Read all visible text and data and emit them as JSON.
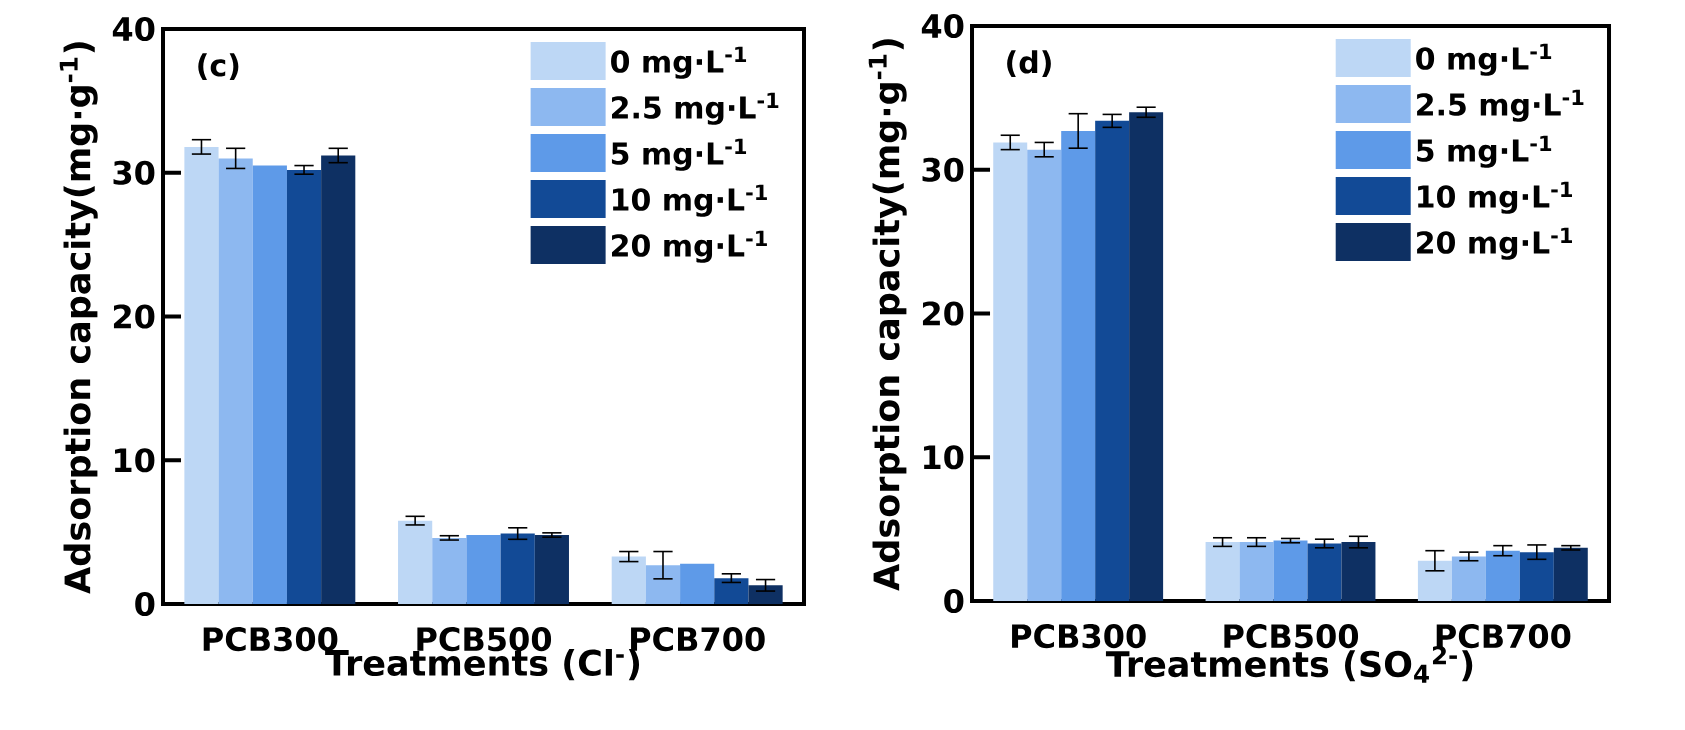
{
  "chart_data": [
    {
      "type": "bar",
      "categories": [
        "PCB300",
        "PCB500",
        "PCB700"
      ],
      "xlabel": "Treatments (Cl$^{-}$)",
      "ylabel": "Adsorption capacity(mg·g$^{-1}$)",
      "ylim": [
        0,
        40
      ],
      "yticks": [
        0,
        10,
        20,
        30,
        40
      ],
      "legend": "top right",
      "annotations": [
        "(c)"
      ],
      "series": [
        {
          "name": "0 mg·L$^{-1}$",
          "color": "#bdd7f5",
          "values": [
            31.8,
            5.8,
            3.3
          ],
          "errors": [
            0.5,
            0.3,
            0.35
          ]
        },
        {
          "name": "2.5 mg·L$^{-1}$",
          "color": "#8db8f0",
          "values": [
            31.0,
            4.6,
            2.7
          ],
          "errors": [
            0.7,
            0.15,
            0.95
          ]
        },
        {
          "name": "5 mg·L$^{-1}$",
          "color": "#5e9ae8",
          "values": [
            30.5,
            4.8,
            2.8
          ],
          "errors": [
            null,
            null,
            null
          ]
        },
        {
          "name": "10 mg·L$^{-1}$",
          "color": "#124a96",
          "values": [
            30.2,
            4.9,
            1.8
          ],
          "errors": [
            0.3,
            0.4,
            0.3
          ]
        },
        {
          "name": "20 mg·L$^{-1}$",
          "color": "#0e3063",
          "values": [
            31.2,
            4.8,
            1.3
          ],
          "errors": [
            0.5,
            0.15,
            0.4
          ]
        }
      ]
    },
    {
      "type": "bar",
      "categories": [
        "PCB300",
        "PCB500",
        "PCB700"
      ],
      "xlabel": "Treatments (SO$_{4}$$^{2-}$)",
      "ylabel": "Adsorption capacity(mg·g$^{-1}$)",
      "ylim": [
        0,
        40
      ],
      "yticks": [
        0,
        10,
        20,
        30,
        40
      ],
      "legend": "top right",
      "annotations": [
        "(d)"
      ],
      "series": [
        {
          "name": "0 mg·L$^{-1}$",
          "color": "#bdd7f5",
          "values": [
            31.9,
            4.1,
            2.8
          ],
          "errors": [
            0.5,
            0.3,
            0.7
          ]
        },
        {
          "name": "2.5 mg·L$^{-1}$",
          "color": "#8db8f0",
          "values": [
            31.4,
            4.1,
            3.1
          ],
          "errors": [
            0.5,
            0.3,
            0.3
          ]
        },
        {
          "name": "5 mg·L$^{-1}$",
          "color": "#5e9ae8",
          "values": [
            32.7,
            4.2,
            3.5
          ],
          "errors": [
            1.2,
            0.15,
            0.35
          ]
        },
        {
          "name": "10 mg·L$^{-1}$",
          "color": "#124a96",
          "values": [
            33.4,
            4.0,
            3.4
          ],
          "errors": [
            0.45,
            0.3,
            0.5
          ]
        },
        {
          "name": "20 mg·L$^{-1}$",
          "color": "#0e3063",
          "values": [
            34.0,
            4.1,
            3.7
          ],
          "errors": [
            0.35,
            0.4,
            0.15
          ]
        }
      ]
    }
  ]
}
